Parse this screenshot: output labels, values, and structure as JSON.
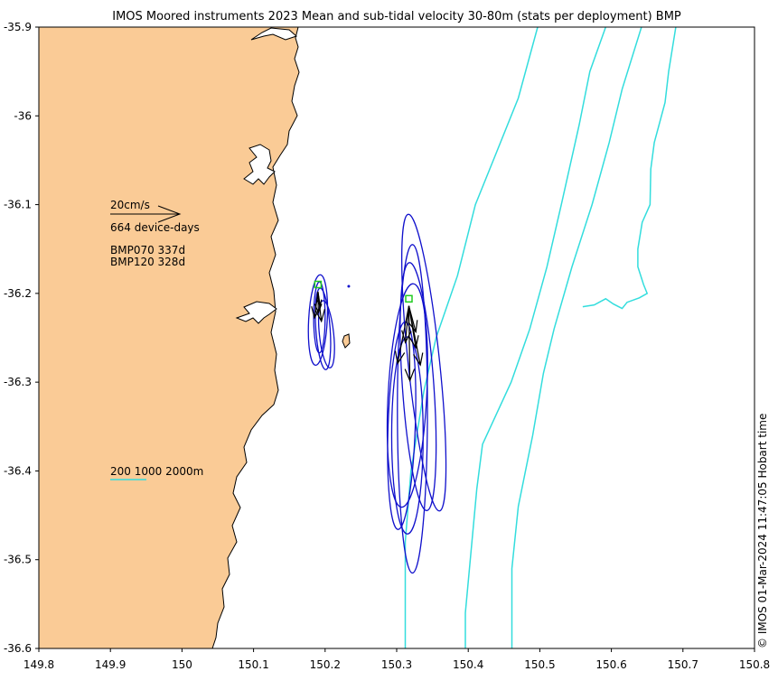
{
  "chart_data": {
    "type": "scatter",
    "title": "IMOS Moored instruments 2023 Mean and sub-tidal velocity 30-80m (stats per deployment) BMP",
    "xlabel": "",
    "ylabel": "",
    "xlim": [
      149.8,
      150.8
    ],
    "ylim": [
      -36.6,
      -35.9
    ],
    "x_ticks": [
      149.8,
      149.9,
      150,
      150.1,
      150.2,
      150.3,
      150.4,
      150.5,
      150.6,
      150.7,
      150.8
    ],
    "x_tick_labels": [
      "149.8",
      "149.9",
      "150",
      "150.1",
      "150.2",
      "150.3",
      "150.4",
      "150.5",
      "150.6",
      "150.7",
      "150.8"
    ],
    "y_ticks": [
      -35.9,
      -36,
      -36.1,
      -36.2,
      -36.3,
      -36.4,
      -36.5,
      -36.6
    ],
    "y_tick_labels": [
      "-35.9",
      "-36",
      "-36.1",
      "-36.2",
      "-36.3",
      "-36.4",
      "-36.5",
      "-36.6"
    ],
    "grid": false,
    "colors": {
      "land": "#FACB96",
      "ellipse": "#1010CC",
      "arrow": "#000000",
      "isobath": "#33DDDD",
      "site": "#22CC22"
    },
    "legend": {
      "scale_label": "20cm/s",
      "scale_speed_cm_s": 20,
      "device_days_label": "664 device-days",
      "deployments": [
        "BMP070 337d",
        "BMP120 328d"
      ],
      "isobath_label": "200 1000 2000m"
    },
    "sites": [
      {
        "name": "BMP070",
        "lon": 150.19,
        "lat": -36.19
      },
      {
        "name": "BMP120",
        "lon": 150.317,
        "lat": -36.206
      }
    ],
    "extra_point": {
      "lon": 150.233,
      "lat": -36.192
    },
    "velocity_arrows": [
      {
        "site": "BMP070",
        "u_cm_s": 0.1,
        "v_cm_s": -6.0
      },
      {
        "site": "BMP070",
        "u_cm_s": -1.0,
        "v_cm_s": -7.5
      },
      {
        "site": "BMP070",
        "u_cm_s": 1.0,
        "v_cm_s": -8.5
      },
      {
        "site": "BMP070",
        "u_cm_s": 0.6,
        "v_cm_s": -4.0
      },
      {
        "site": "BMP120",
        "u_cm_s": 0.3,
        "v_cm_s": -21.5
      },
      {
        "site": "BMP120",
        "u_cm_s": -3.2,
        "v_cm_s": -16.5
      },
      {
        "site": "BMP120",
        "u_cm_s": 3.3,
        "v_cm_s": -17.0
      },
      {
        "site": "BMP120",
        "u_cm_s": 2.0,
        "v_cm_s": -12.0
      },
      {
        "site": "BMP120",
        "u_cm_s": -1.0,
        "v_cm_s": -10.5
      },
      {
        "site": "BMP120",
        "u_cm_s": 2.0,
        "v_cm_s": -7.5
      }
    ],
    "ellipses": [
      {
        "site": "BMP070",
        "lon": 150.192,
        "lat": -36.227,
        "semi_major_deg": 0.04,
        "semi_minor_deg": 0.008,
        "tilt_deg": 0
      },
      {
        "site": "BMP070",
        "lon": 150.197,
        "lat": -36.24,
        "semi_major_deg": 0.046,
        "semi_minor_deg": 0.01,
        "tilt_deg": -4
      },
      {
        "site": "BMP070",
        "lon": 150.19,
        "lat": -36.23,
        "semi_major_deg": 0.051,
        "semi_minor_deg": 0.013,
        "tilt_deg": 3
      },
      {
        "site": "BMP070",
        "lon": 150.202,
        "lat": -36.246,
        "semi_major_deg": 0.038,
        "semi_minor_deg": 0.01,
        "tilt_deg": -6
      },
      {
        "site": "BMP120",
        "lon": 150.33,
        "lat": -36.305,
        "semi_major_deg": 0.14,
        "semi_minor_deg": 0.022,
        "tilt_deg": -4
      },
      {
        "site": "BMP120",
        "lon": 150.338,
        "lat": -36.278,
        "semi_major_deg": 0.168,
        "semi_minor_deg": 0.022,
        "tilt_deg": -6
      },
      {
        "site": "BMP120",
        "lon": 150.315,
        "lat": -36.315,
        "semi_major_deg": 0.126,
        "semi_minor_deg": 0.027,
        "tilt_deg": 3
      },
      {
        "site": "BMP120",
        "lon": 150.307,
        "lat": -36.349,
        "semi_major_deg": 0.117,
        "semi_minor_deg": 0.019,
        "tilt_deg": 2
      },
      {
        "site": "BMP120",
        "lon": 150.322,
        "lat": -36.33,
        "semi_major_deg": 0.185,
        "semi_minor_deg": 0.021,
        "tilt_deg": 0
      },
      {
        "site": "BMP120",
        "lon": 150.315,
        "lat": -36.36,
        "semi_major_deg": 0.111,
        "semi_minor_deg": 0.022,
        "tilt_deg": 0
      }
    ],
    "isobaths": [
      {
        "depth": 200,
        "points": [
          [
            150.312,
            -36.6
          ],
          [
            150.312,
            -36.48
          ],
          [
            150.32,
            -36.4
          ],
          [
            150.338,
            -36.31
          ],
          [
            150.355,
            -36.25
          ],
          [
            150.385,
            -36.18
          ],
          [
            150.41,
            -36.1
          ],
          [
            150.44,
            -36.04
          ],
          [
            150.47,
            -35.98
          ],
          [
            150.497,
            -35.9
          ]
        ]
      },
      {
        "depth": 1000,
        "points": [
          [
            150.396,
            -36.6
          ],
          [
            150.396,
            -36.56
          ],
          [
            150.412,
            -36.42
          ],
          [
            150.42,
            -36.37
          ],
          [
            150.46,
            -36.3
          ],
          [
            150.486,
            -36.24
          ],
          [
            150.51,
            -36.17
          ],
          [
            150.53,
            -36.1
          ],
          [
            150.555,
            -36.01
          ],
          [
            150.57,
            -35.95
          ],
          [
            150.592,
            -35.9
          ]
        ]
      },
      {
        "depth": 2000,
        "points": [
          [
            150.461,
            -36.6
          ],
          [
            150.461,
            -36.51
          ],
          [
            150.47,
            -36.44
          ],
          [
            150.49,
            -36.36
          ],
          [
            150.505,
            -36.29
          ],
          [
            150.52,
            -36.24
          ],
          [
            150.545,
            -36.17
          ],
          [
            150.573,
            -36.1
          ],
          [
            150.597,
            -36.03
          ],
          [
            150.615,
            -35.97
          ],
          [
            150.642,
            -35.9
          ]
        ]
      },
      {
        "depth": 2000,
        "points": [
          [
            150.69,
            -35.9
          ],
          [
            150.68,
            -35.95
          ],
          [
            150.675,
            -35.985
          ],
          [
            150.66,
            -36.03
          ],
          [
            150.655,
            -36.06
          ],
          [
            150.654,
            -36.1
          ],
          [
            150.643,
            -36.12
          ],
          [
            150.637,
            -36.15
          ],
          [
            150.637,
            -36.17
          ],
          [
            150.645,
            -36.19
          ],
          [
            150.65,
            -36.2
          ],
          [
            150.639,
            -36.205
          ],
          [
            150.622,
            -36.21
          ],
          [
            150.615,
            -36.217
          ],
          [
            150.603,
            -36.212
          ],
          [
            150.592,
            -36.206
          ],
          [
            150.576,
            -36.213
          ],
          [
            150.56,
            -36.215
          ]
        ]
      }
    ]
  }
}
